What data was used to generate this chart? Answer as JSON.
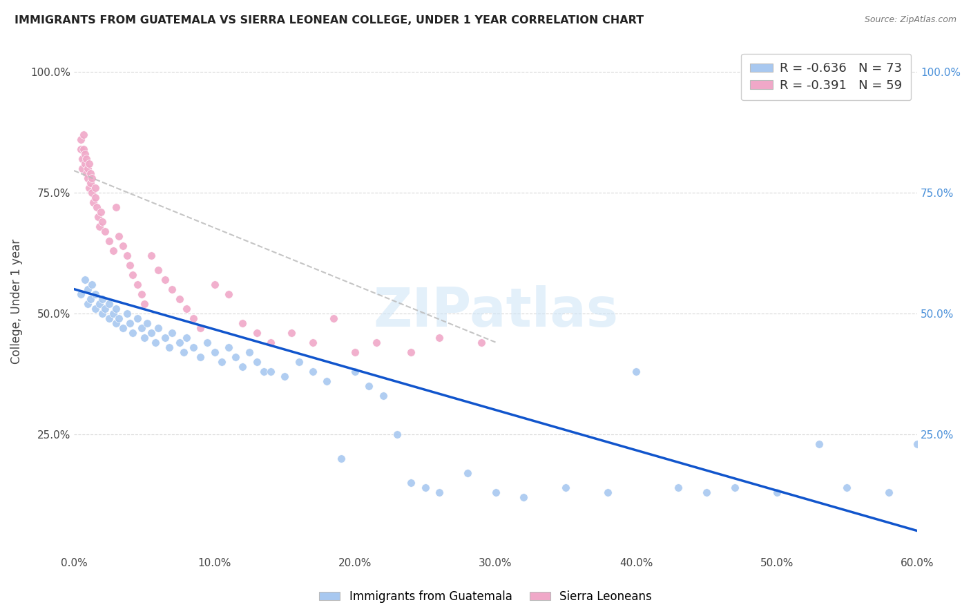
{
  "title": "IMMIGRANTS FROM GUATEMALA VS SIERRA LEONEAN COLLEGE, UNDER 1 YEAR CORRELATION CHART",
  "source": "Source: ZipAtlas.com",
  "ylabel": "College, Under 1 year",
  "xlim": [
    0.0,
    0.6
  ],
  "ylim": [
    0.0,
    1.05
  ],
  "xtick_labels": [
    "0.0%",
    "10.0%",
    "20.0%",
    "30.0%",
    "40.0%",
    "50.0%",
    "60.0%"
  ],
  "xtick_vals": [
    0.0,
    0.1,
    0.2,
    0.3,
    0.4,
    0.5,
    0.6
  ],
  "ytick_labels": [
    "25.0%",
    "50.0%",
    "75.0%",
    "100.0%"
  ],
  "ytick_vals": [
    0.25,
    0.5,
    0.75,
    1.0
  ],
  "right_ytick_labels": [
    "25.0%",
    "50.0%",
    "75.0%",
    "100.0%"
  ],
  "blue_R": -0.636,
  "blue_N": 73,
  "pink_R": -0.391,
  "pink_N": 59,
  "blue_color": "#a8c8f0",
  "pink_color": "#f0a8c8",
  "blue_line_color": "#1155cc",
  "pink_line_color": "#c0a0a8",
  "right_axis_color": "#4a90d9",
  "watermark": "ZIPatlas",
  "background_color": "#ffffff",
  "grid_color": "#d8d8d8",
  "blue_line_x0": 0.0,
  "blue_line_y0": 0.55,
  "blue_line_x1": 0.6,
  "blue_line_y1": 0.05,
  "pink_line_x0": 0.0,
  "pink_line_y0": 0.795,
  "pink_line_x1": 0.3,
  "pink_line_y1": 0.44,
  "blue_scatter_x": [
    0.005,
    0.008,
    0.01,
    0.01,
    0.012,
    0.013,
    0.015,
    0.015,
    0.018,
    0.02,
    0.02,
    0.022,
    0.025,
    0.025,
    0.028,
    0.03,
    0.03,
    0.032,
    0.035,
    0.038,
    0.04,
    0.042,
    0.045,
    0.048,
    0.05,
    0.052,
    0.055,
    0.058,
    0.06,
    0.065,
    0.068,
    0.07,
    0.075,
    0.078,
    0.08,
    0.085,
    0.09,
    0.095,
    0.1,
    0.105,
    0.11,
    0.115,
    0.12,
    0.125,
    0.13,
    0.135,
    0.14,
    0.15,
    0.16,
    0.17,
    0.18,
    0.19,
    0.2,
    0.21,
    0.22,
    0.23,
    0.24,
    0.25,
    0.26,
    0.28,
    0.3,
    0.32,
    0.35,
    0.38,
    0.4,
    0.43,
    0.45,
    0.47,
    0.5,
    0.53,
    0.55,
    0.58,
    0.6
  ],
  "blue_scatter_y": [
    0.54,
    0.57,
    0.52,
    0.55,
    0.53,
    0.56,
    0.51,
    0.54,
    0.52,
    0.5,
    0.53,
    0.51,
    0.49,
    0.52,
    0.5,
    0.48,
    0.51,
    0.49,
    0.47,
    0.5,
    0.48,
    0.46,
    0.49,
    0.47,
    0.45,
    0.48,
    0.46,
    0.44,
    0.47,
    0.45,
    0.43,
    0.46,
    0.44,
    0.42,
    0.45,
    0.43,
    0.41,
    0.44,
    0.42,
    0.4,
    0.43,
    0.41,
    0.39,
    0.42,
    0.4,
    0.38,
    0.38,
    0.37,
    0.4,
    0.38,
    0.36,
    0.2,
    0.38,
    0.35,
    0.33,
    0.25,
    0.15,
    0.14,
    0.13,
    0.17,
    0.13,
    0.12,
    0.14,
    0.13,
    0.38,
    0.14,
    0.13,
    0.14,
    0.13,
    0.23,
    0.14,
    0.13,
    0.23
  ],
  "pink_scatter_x": [
    0.005,
    0.005,
    0.006,
    0.006,
    0.007,
    0.007,
    0.008,
    0.008,
    0.009,
    0.009,
    0.01,
    0.01,
    0.011,
    0.011,
    0.012,
    0.012,
    0.013,
    0.013,
    0.014,
    0.015,
    0.015,
    0.016,
    0.017,
    0.018,
    0.019,
    0.02,
    0.022,
    0.025,
    0.028,
    0.03,
    0.032,
    0.035,
    0.038,
    0.04,
    0.042,
    0.045,
    0.048,
    0.05,
    0.055,
    0.06,
    0.065,
    0.07,
    0.075,
    0.08,
    0.085,
    0.09,
    0.1,
    0.11,
    0.12,
    0.13,
    0.14,
    0.155,
    0.17,
    0.185,
    0.2,
    0.215,
    0.24,
    0.26,
    0.29
  ],
  "pink_scatter_y": [
    0.84,
    0.86,
    0.82,
    0.8,
    0.84,
    0.87,
    0.81,
    0.83,
    0.79,
    0.82,
    0.8,
    0.78,
    0.81,
    0.76,
    0.79,
    0.77,
    0.75,
    0.78,
    0.73,
    0.76,
    0.74,
    0.72,
    0.7,
    0.68,
    0.71,
    0.69,
    0.67,
    0.65,
    0.63,
    0.72,
    0.66,
    0.64,
    0.62,
    0.6,
    0.58,
    0.56,
    0.54,
    0.52,
    0.62,
    0.59,
    0.57,
    0.55,
    0.53,
    0.51,
    0.49,
    0.47,
    0.56,
    0.54,
    0.48,
    0.46,
    0.44,
    0.46,
    0.44,
    0.49,
    0.42,
    0.44,
    0.42,
    0.45,
    0.44
  ]
}
